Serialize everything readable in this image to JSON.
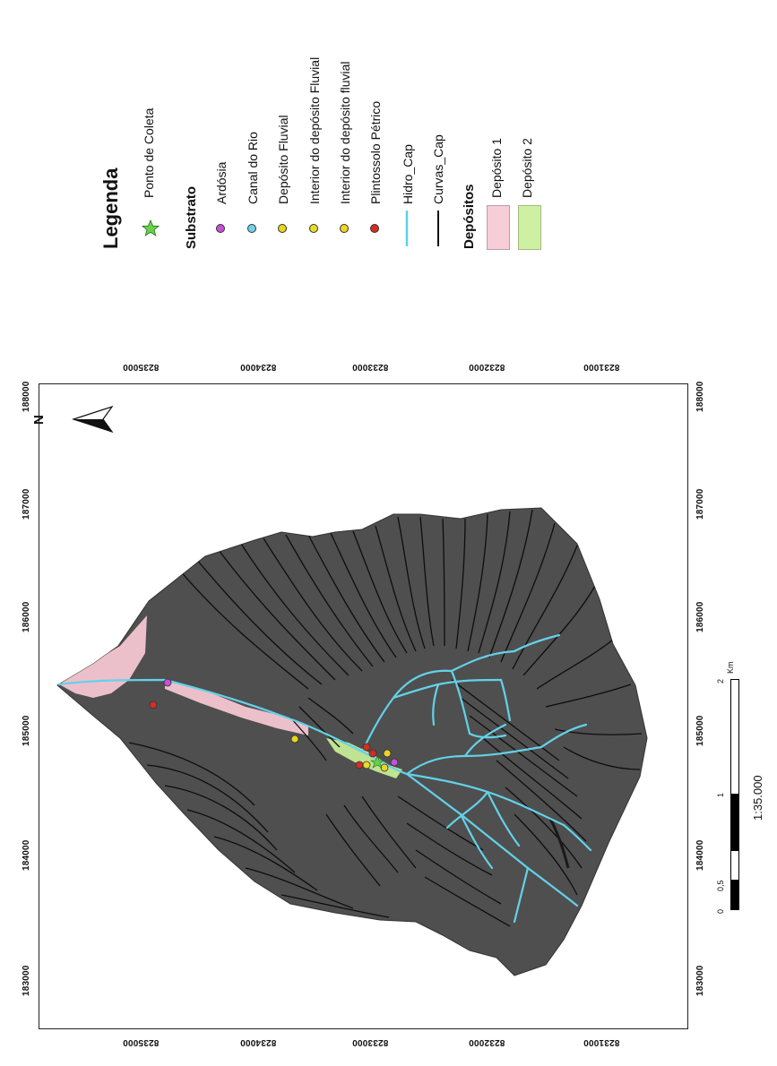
{
  "legend": {
    "title": "Legenda",
    "collection_point": {
      "label": "Ponto de Coleta",
      "color": "#66d24a",
      "icon": "star-icon"
    },
    "substrate_title": "Substrato",
    "substrates": [
      {
        "label": "Ardósia",
        "color": "#c84fd6"
      },
      {
        "label": "Canal do Rio",
        "color": "#6fd3e8"
      },
      {
        "label": "Depósito Fluvial",
        "color": "#e7d51e"
      },
      {
        "label": "Interior do depósito Fluvial",
        "color": "#e6dc2a"
      },
      {
        "label": "Interior do depósito fluvial",
        "color": "#f0d423"
      },
      {
        "label": "Plintossolo Pétrico",
        "color": "#d42d22"
      }
    ],
    "lines": [
      {
        "label": "Hidro_Cap",
        "color": "#5ed1e8"
      },
      {
        "label": "Curvas_Cap",
        "color": "#111111"
      }
    ],
    "deposits_title": "Depósitos",
    "deposits": [
      {
        "label": "Depósito 1",
        "color": "#f7cdd8"
      },
      {
        "label": "Depósito 2",
        "color": "#cdf0a2"
      }
    ]
  },
  "axes": {
    "easting_ticks": [
      "183000",
      "184000",
      "185000",
      "186000",
      "187000",
      "188000"
    ],
    "northing_ticks": [
      "8235000",
      "8234000",
      "8233000",
      "8232000",
      "8231000"
    ]
  },
  "north_arrow": {
    "label": "N",
    "icon": "north-arrow-icon"
  },
  "scale_bar": {
    "labels": [
      "0",
      "0,5",
      "1",
      "2"
    ],
    "unit": "Km",
    "ratio": "1:35.000"
  },
  "colors": {
    "terrain": "#4d4d4d",
    "contour": "#0d0d0d",
    "river": "#63d2ea",
    "deposit1": "#f7cdd8",
    "deposit2": "#cdf0a2"
  }
}
